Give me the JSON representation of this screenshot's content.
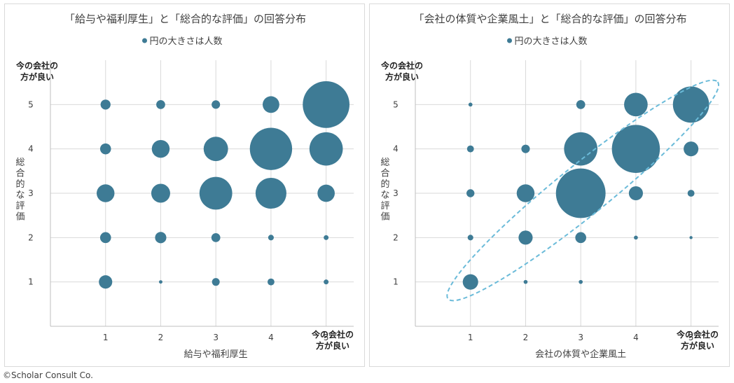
{
  "copyright": "©Scholar Consult Co.",
  "colors": {
    "bubble": "#3e7b95",
    "ellipse": "#6bbbd9",
    "grid": "#d9d9d9",
    "axis": "#bfbfbf",
    "text": "#404040"
  },
  "chart_data": [
    {
      "type": "bubble",
      "title": "「給与や福利厚生」と「総合的な評価」の回答分布",
      "legend": "円の大きさは人数",
      "legend_position": "top",
      "xlabel": "給与や福利厚生",
      "ylabel": "総合的な評価",
      "y_top_label": "今の会社の\n方が良い",
      "x_right_label": "今の会社の\n方が良い",
      "xlim": [
        0,
        5.5
      ],
      "ylim": [
        0,
        6
      ],
      "xticks": [
        1,
        2,
        3,
        4,
        5
      ],
      "yticks": [
        1,
        2,
        3,
        4,
        5
      ],
      "grid": true,
      "ellipse": false,
      "points": [
        {
          "x": 1,
          "y": 5,
          "size": 2.5
        },
        {
          "x": 2,
          "y": 5,
          "size": 2
        },
        {
          "x": 3,
          "y": 5,
          "size": 1.8
        },
        {
          "x": 4,
          "y": 5,
          "size": 7
        },
        {
          "x": 5,
          "y": 5,
          "size": 55
        },
        {
          "x": 1,
          "y": 4,
          "size": 3
        },
        {
          "x": 2,
          "y": 4,
          "size": 8
        },
        {
          "x": 3,
          "y": 4,
          "size": 15
        },
        {
          "x": 4,
          "y": 4,
          "size": 45
        },
        {
          "x": 5,
          "y": 4,
          "size": 28
        },
        {
          "x": 1,
          "y": 3,
          "size": 8
        },
        {
          "x": 2,
          "y": 3,
          "size": 9
        },
        {
          "x": 3,
          "y": 3,
          "size": 27
        },
        {
          "x": 4,
          "y": 3,
          "size": 24
        },
        {
          "x": 5,
          "y": 3,
          "size": 7.5
        },
        {
          "x": 1,
          "y": 2,
          "size": 3
        },
        {
          "x": 2,
          "y": 2,
          "size": 3.2
        },
        {
          "x": 3,
          "y": 2,
          "size": 2
        },
        {
          "x": 4,
          "y": 2,
          "size": 0.8
        },
        {
          "x": 5,
          "y": 2,
          "size": 0.6
        },
        {
          "x": 1,
          "y": 1,
          "size": 4.5
        },
        {
          "x": 2,
          "y": 1,
          "size": 0.3
        },
        {
          "x": 3,
          "y": 1,
          "size": 1.5
        },
        {
          "x": 4,
          "y": 1,
          "size": 1.2
        },
        {
          "x": 5,
          "y": 1,
          "size": 0.6
        }
      ]
    },
    {
      "type": "bubble",
      "title": "「会社の体質や企業風土」と「総合的な評価」の回答分布",
      "legend": "円の大きさは人数",
      "legend_position": "top",
      "xlabel": "会社の体質や企業風土",
      "ylabel": "総合的な評価",
      "y_top_label": "今の会社の\n方が良い",
      "x_right_label": "今の会社の\n方が良い",
      "xlim": [
        0,
        5.5
      ],
      "ylim": [
        0,
        6
      ],
      "xticks": [
        1,
        2,
        3,
        4,
        5
      ],
      "yticks": [
        1,
        2,
        3,
        4,
        5
      ],
      "grid": true,
      "ellipse": true,
      "points": [
        {
          "x": 1,
          "y": 5,
          "size": 0.4
        },
        {
          "x": 3,
          "y": 5,
          "size": 2
        },
        {
          "x": 4,
          "y": 5,
          "size": 14
        },
        {
          "x": 5,
          "y": 5,
          "size": 33
        },
        {
          "x": 1,
          "y": 4,
          "size": 1.2
        },
        {
          "x": 2,
          "y": 4,
          "size": 1.8
        },
        {
          "x": 3,
          "y": 4,
          "size": 28
        },
        {
          "x": 4,
          "y": 4,
          "size": 58
        },
        {
          "x": 5,
          "y": 4,
          "size": 5.5
        },
        {
          "x": 1,
          "y": 3,
          "size": 1.6
        },
        {
          "x": 2,
          "y": 3,
          "size": 8
        },
        {
          "x": 3,
          "y": 3,
          "size": 62
        },
        {
          "x": 4,
          "y": 3,
          "size": 5
        },
        {
          "x": 5,
          "y": 3,
          "size": 1.2
        },
        {
          "x": 1,
          "y": 2,
          "size": 0.8
        },
        {
          "x": 2,
          "y": 2,
          "size": 5
        },
        {
          "x": 3,
          "y": 2,
          "size": 3
        },
        {
          "x": 4,
          "y": 2,
          "size": 0.4
        },
        {
          "x": 5,
          "y": 2,
          "size": 0.2
        },
        {
          "x": 1,
          "y": 1,
          "size": 6
        },
        {
          "x": 2,
          "y": 1,
          "size": 0.4
        },
        {
          "x": 3,
          "y": 1,
          "size": 0.4
        }
      ]
    }
  ]
}
